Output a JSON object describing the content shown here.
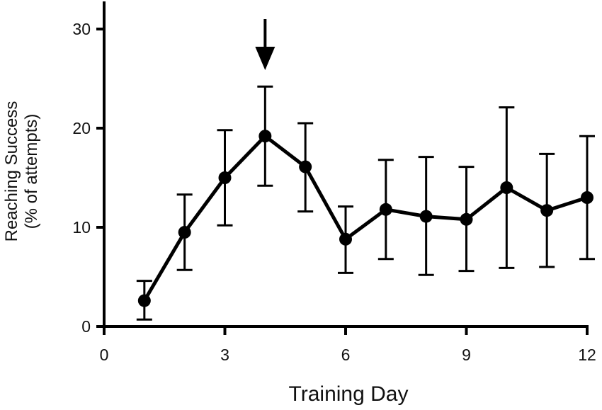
{
  "chart_data": {
    "type": "line",
    "title": "",
    "xlabel": "Training Day",
    "ylabel_lines": [
      "Reaching Success",
      "(% of attempts)"
    ],
    "xlim": [
      0,
      12
    ],
    "ylim": [
      0,
      30
    ],
    "xticks": [
      0,
      3,
      6,
      9,
      12
    ],
    "yticks": [
      0,
      10,
      20,
      30
    ],
    "grid": false,
    "legend": "none",
    "series": [
      {
        "x": [
          1,
          2,
          3,
          4,
          5,
          6,
          7,
          8,
          9,
          10,
          11,
          12
        ],
        "y": [
          2.6,
          9.5,
          15.0,
          19.2,
          16.1,
          8.8,
          11.8,
          11.1,
          10.8,
          14.0,
          11.7,
          13.0
        ],
        "err_low": [
          0.7,
          5.7,
          10.2,
          14.2,
          11.6,
          5.4,
          6.8,
          5.2,
          5.6,
          5.9,
          6.0,
          6.8
        ],
        "err_high": [
          4.6,
          13.3,
          19.8,
          24.2,
          20.5,
          12.1,
          16.8,
          17.1,
          16.1,
          22.1,
          17.4,
          19.2
        ],
        "color": "#000000"
      }
    ],
    "annotations": [
      {
        "type": "arrow",
        "x": 4,
        "points": "down"
      }
    ]
  }
}
